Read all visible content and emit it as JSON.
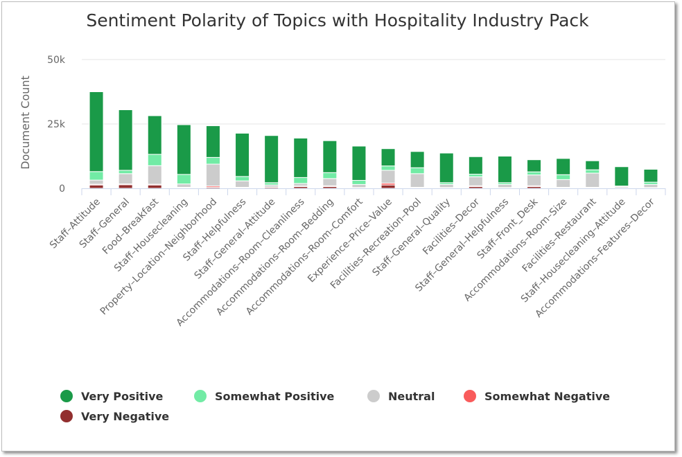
{
  "chart_data": {
    "type": "bar",
    "stacked": true,
    "title": "Sentiment Polarity of Topics with Hospitality Industry Pack",
    "ylabel": "Document Count",
    "ylim": [
      0,
      50000
    ],
    "yticks": [
      0,
      25000,
      50000
    ],
    "ytick_labels": [
      "0",
      "25k",
      "50k"
    ],
    "legend_position": "bottom",
    "categories": [
      "Staff–Attitude",
      "Staff–General",
      "Food–Breakfast",
      "Staff–Housecleaning",
      "Property–Location–Neighborhood",
      "Staff–Helpfulness",
      "Staff–General–Attitude",
      "Accommodations–Room–Cleanliness",
      "Accommodations–Room–Bedding",
      "Accommodations–Room–Comfort",
      "Experience–Price–Value",
      "Facilities–Recreation–Pool",
      "Staff–General–Quality",
      "Facilities–Decor",
      "Staff–General–Helpfulness",
      "Staff–Front_Desk",
      "Accommodations–Room–Size",
      "Facilities–Restaurant",
      "Staff–Housecleaning–Attitude",
      "Accommodations–Features–Decor"
    ],
    "series": [
      {
        "name": "Very Positive",
        "color": "#1a9a48",
        "values": [
          31000,
          23500,
          15000,
          19300,
          12300,
          16800,
          18300,
          15300,
          12400,
          13300,
          6700,
          6300,
          11500,
          6800,
          10300,
          4700,
          6300,
          3500,
          7500,
          5000
        ]
      },
      {
        "name": "Somewhat Positive",
        "color": "#72eba5",
        "values": [
          3300,
          1300,
          4400,
          3700,
          2600,
          1700,
          900,
          2300,
          2300,
          1600,
          1700,
          2300,
          700,
          1000,
          700,
          1200,
          1900,
          1300,
          200,
          900
        ]
      },
      {
        "name": "Neutral",
        "color": "#cccccc",
        "values": [
          1600,
          4000,
          7200,
          1300,
          8500,
          2500,
          800,
          1000,
          2800,
          1200,
          5000,
          5300,
          1200,
          3500,
          1200,
          4200,
          3000,
          5500,
          500,
          1200
        ]
      },
      {
        "name": "Somewhat Negative",
        "color": "#f95b5b",
        "values": [
          300,
          300,
          300,
          200,
          500,
          200,
          100,
          200,
          300,
          100,
          700,
          200,
          100,
          300,
          100,
          300,
          200,
          200,
          100,
          200
        ]
      },
      {
        "name": "Very Negative",
        "color": "#922f2f",
        "values": [
          1300,
          1400,
          1300,
          200,
          400,
          200,
          400,
          700,
          700,
          200,
          1300,
          200,
          200,
          700,
          200,
          700,
          200,
          200,
          100,
          100
        ]
      }
    ]
  }
}
